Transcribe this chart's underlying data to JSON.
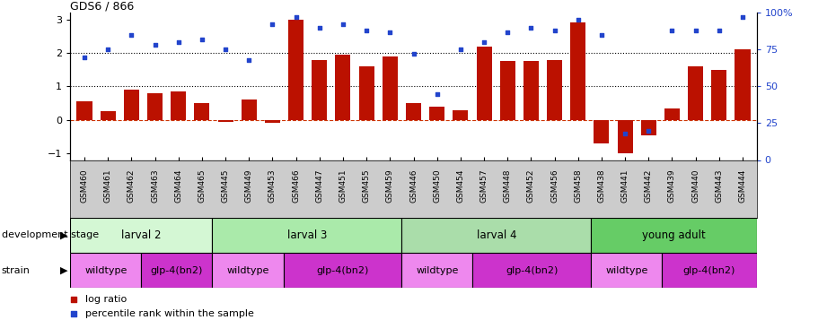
{
  "title": "GDS6 / 866",
  "samples": [
    "GSM460",
    "GSM461",
    "GSM462",
    "GSM463",
    "GSM464",
    "GSM465",
    "GSM445",
    "GSM449",
    "GSM453",
    "GSM466",
    "GSM447",
    "GSM451",
    "GSM455",
    "GSM459",
    "GSM446",
    "GSM450",
    "GSM454",
    "GSM457",
    "GSM448",
    "GSM452",
    "GSM456",
    "GSM458",
    "GSM438",
    "GSM441",
    "GSM442",
    "GSM439",
    "GSM440",
    "GSM443",
    "GSM444"
  ],
  "log_ratios": [
    0.55,
    0.25,
    0.9,
    0.8,
    0.85,
    0.5,
    -0.05,
    0.6,
    -0.08,
    3.0,
    1.8,
    1.95,
    1.6,
    1.9,
    0.5,
    0.4,
    0.3,
    2.2,
    1.75,
    1.75,
    1.8,
    2.9,
    -0.7,
    -1.0,
    -0.45,
    0.35,
    1.6,
    1.5,
    2.1
  ],
  "percentile_ranks": [
    70,
    75,
    85,
    78,
    80,
    82,
    75,
    68,
    92,
    97,
    90,
    92,
    88,
    87,
    72,
    45,
    75,
    80,
    87,
    90,
    88,
    95,
    85,
    18,
    20,
    88,
    88,
    88,
    97
  ],
  "dev_stages": [
    {
      "label": "larval 2",
      "start": 0,
      "end": 6,
      "color": "#d4f7d4"
    },
    {
      "label": "larval 3",
      "start": 6,
      "end": 14,
      "color": "#aaeaaa"
    },
    {
      "label": "larval 4",
      "start": 14,
      "end": 22,
      "color": "#aaddaa"
    },
    {
      "label": "young adult",
      "start": 22,
      "end": 29,
      "color": "#66cc66"
    }
  ],
  "strains": [
    {
      "label": "wildtype",
      "start": 0,
      "end": 3,
      "color": "#ee88ee"
    },
    {
      "label": "glp-4(bn2)",
      "start": 3,
      "end": 6,
      "color": "#cc33cc"
    },
    {
      "label": "wildtype",
      "start": 6,
      "end": 9,
      "color": "#ee88ee"
    },
    {
      "label": "glp-4(bn2)",
      "start": 9,
      "end": 14,
      "color": "#cc33cc"
    },
    {
      "label": "wildtype",
      "start": 14,
      "end": 17,
      "color": "#ee88ee"
    },
    {
      "label": "glp-4(bn2)",
      "start": 17,
      "end": 22,
      "color": "#cc33cc"
    },
    {
      "label": "wildtype",
      "start": 22,
      "end": 25,
      "color": "#ee88ee"
    },
    {
      "label": "glp-4(bn2)",
      "start": 25,
      "end": 29,
      "color": "#cc33cc"
    }
  ],
  "bar_color": "#bb1100",
  "dot_color": "#2244cc",
  "ylim_left": [
    -1.2,
    3.2
  ],
  "ylim_right": [
    0,
    100
  ],
  "yticks_left": [
    -1,
    0,
    1,
    2,
    3
  ],
  "yticks_right": [
    0,
    25,
    50,
    75,
    100
  ],
  "hlines": [
    0,
    1,
    2
  ],
  "hline_styles": [
    "dashed",
    "dotted",
    "dotted"
  ],
  "hline_colors": [
    "#cc3300",
    "black",
    "black"
  ],
  "xlabel_bg": "#cccccc",
  "dev_stage_label": "development stage",
  "strain_label": "strain",
  "legend_bar": "log ratio",
  "legend_dot": "percentile rank within the sample"
}
